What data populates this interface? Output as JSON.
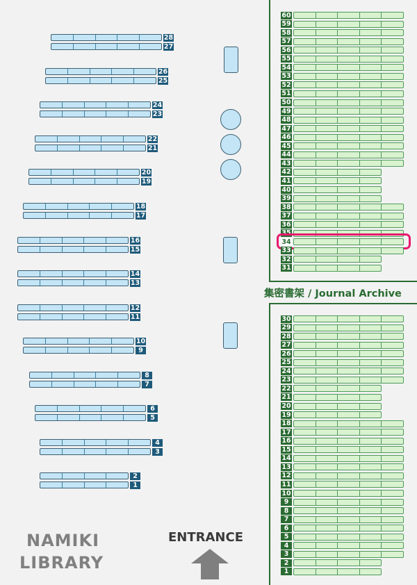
{
  "library_name": [
    "NAMIKI",
    "LIBRARY"
  ],
  "entrance_label": "ENTRANCE",
  "archive_label": "集密書架 / Journal Archive",
  "highlighted_shelf": 34,
  "colors": {
    "general_shelf": "#c3e5f5",
    "archive_shelf": "#d9f2d0",
    "highlight": "#e8196e",
    "archive_frame": "#2a6b32"
  },
  "general_shelves": [
    28,
    27,
    26,
    25,
    24,
    23,
    22,
    21,
    20,
    19,
    18,
    17,
    16,
    15,
    14,
    13,
    12,
    11,
    10,
    9,
    8,
    7,
    6,
    5,
    4,
    3,
    2,
    1
  ],
  "archive_upper": [
    60,
    59,
    58,
    57,
    56,
    55,
    54,
    53,
    52,
    51,
    50,
    49,
    48,
    47,
    46,
    45,
    44,
    43,
    42,
    41,
    40,
    39,
    38,
    37,
    36,
    35,
    34,
    33,
    32,
    31
  ],
  "archive_lower": [
    30,
    29,
    28,
    27,
    26,
    25,
    24,
    23,
    22,
    21,
    20,
    19,
    18,
    17,
    16,
    15,
    14,
    13,
    12,
    11,
    10,
    9,
    8,
    7,
    6,
    5,
    4,
    3,
    2,
    1
  ]
}
